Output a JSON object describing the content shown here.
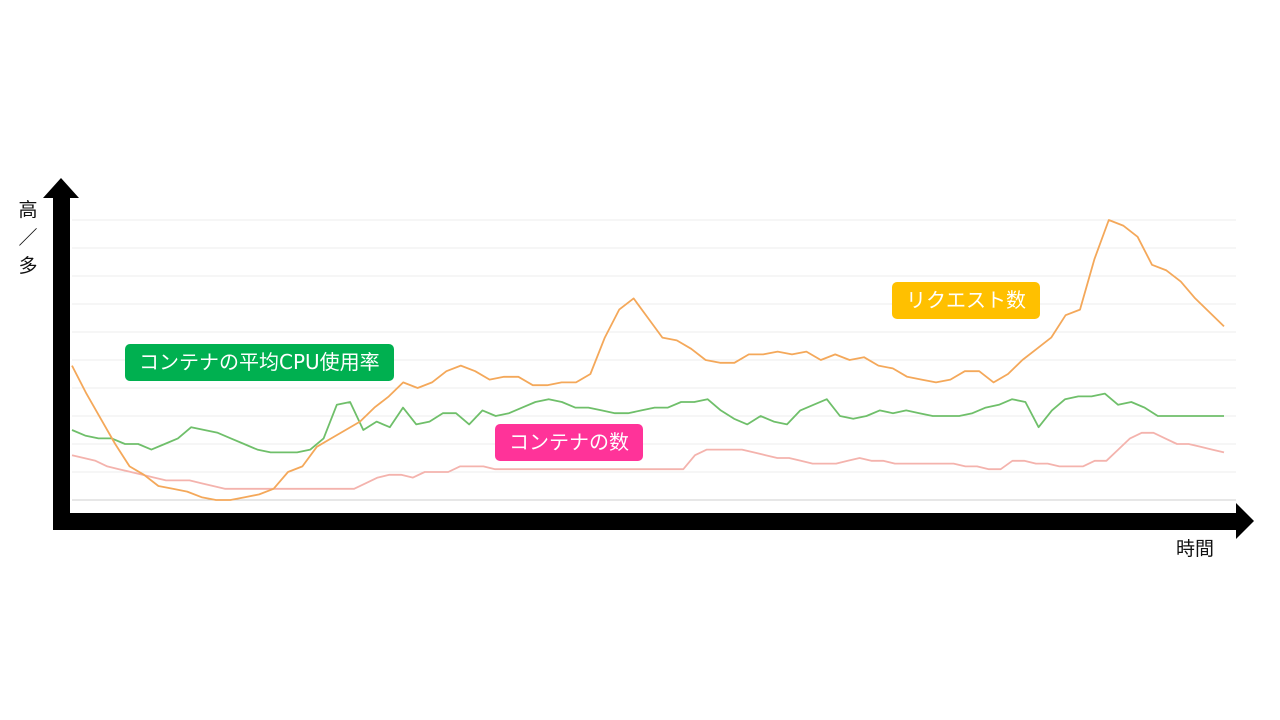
{
  "chart_data": {
    "type": "line",
    "title": "",
    "xlabel": "時間",
    "ylabel_parts": [
      "高",
      "／",
      "多"
    ],
    "ylim": [
      0,
      100
    ],
    "grid": true,
    "colors": {
      "requests": "#f4a85a",
      "cpu": "#6fbf6a",
      "containers": "#f4b3ad",
      "badge_requests": "#ffc000",
      "badge_cpu": "#00b050",
      "badge_containers": "#ff3399"
    },
    "series": [
      {
        "name": "リクエスト数",
        "key": "requests",
        "values": [
          48,
          38,
          29,
          20,
          12,
          9,
          5,
          4,
          3,
          1,
          0,
          0,
          1,
          2,
          4,
          10,
          12,
          19,
          22,
          25,
          28,
          33,
          37,
          42,
          40,
          42,
          46,
          48,
          46,
          43,
          44,
          44,
          41,
          41,
          42,
          42,
          45,
          58,
          68,
          72,
          65,
          58,
          57,
          54,
          50,
          49,
          49,
          52,
          52,
          53,
          52,
          53,
          50,
          52,
          50,
          51,
          48,
          47,
          44,
          43,
          42,
          43,
          46,
          46,
          42,
          45,
          50,
          54,
          58,
          66,
          68,
          86,
          100,
          98,
          94,
          84,
          82,
          78,
          72,
          67,
          62
        ]
      },
      {
        "name": "コンテナの平均CPU使用率",
        "key": "cpu",
        "values": [
          25,
          23,
          22,
          22,
          20,
          20,
          18,
          20,
          22,
          26,
          25,
          24,
          22,
          20,
          18,
          17,
          17,
          17,
          18,
          22,
          34,
          35,
          25,
          28,
          26,
          33,
          27,
          28,
          31,
          31,
          27,
          32,
          30,
          31,
          33,
          35,
          36,
          35,
          33,
          33,
          32,
          31,
          31,
          32,
          33,
          33,
          35,
          35,
          36,
          32,
          29,
          27,
          30,
          28,
          27,
          32,
          34,
          36,
          30,
          29,
          30,
          32,
          31,
          32,
          31,
          30,
          30,
          30,
          31,
          33,
          34,
          36,
          35,
          26,
          32,
          36,
          37,
          37,
          38,
          34,
          35,
          33,
          30,
          30,
          30,
          30,
          30,
          30
        ]
      },
      {
        "name": "コンテナの数",
        "key": "containers",
        "values": [
          16,
          15,
          14,
          12,
          11,
          10,
          9,
          8,
          7,
          7,
          7,
          6,
          5,
          4,
          4,
          4,
          4,
          4,
          4,
          4,
          4,
          4,
          4,
          4,
          4,
          6,
          8,
          9,
          9,
          8,
          10,
          10,
          10,
          12,
          12,
          12,
          11,
          11,
          11,
          11,
          11,
          11,
          11,
          11,
          11,
          11,
          11,
          11,
          11,
          11,
          11,
          11,
          11,
          16,
          18,
          18,
          18,
          18,
          17,
          16,
          15,
          15,
          14,
          13,
          13,
          13,
          14,
          15,
          14,
          14,
          13,
          13,
          13,
          13,
          13,
          13,
          12,
          12,
          11,
          11,
          14,
          14,
          13,
          13,
          12,
          12,
          12,
          14,
          14,
          18,
          22,
          24,
          24,
          22,
          20,
          20,
          19,
          18,
          17
        ]
      }
    ]
  }
}
